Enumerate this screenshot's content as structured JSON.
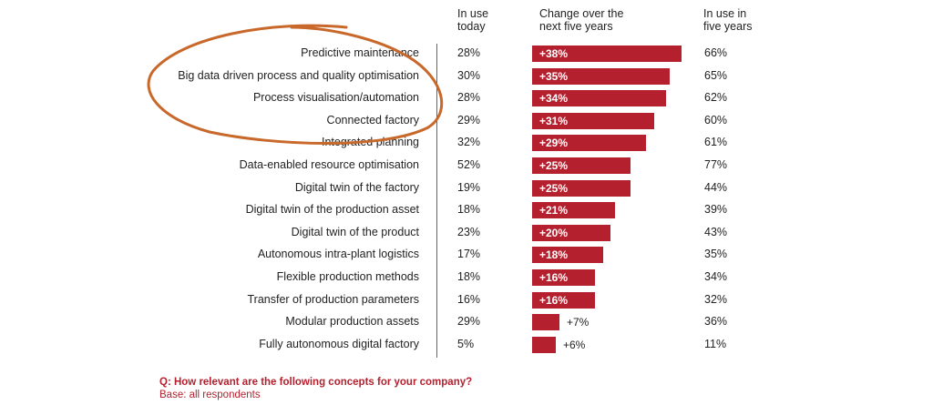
{
  "headers": {
    "today": [
      "In use",
      "today"
    ],
    "change": [
      "Change over the",
      "next five years"
    ],
    "future": [
      "In use in",
      "five years"
    ]
  },
  "chart_data": {
    "type": "bar",
    "orientation": "horizontal",
    "categories": [
      "Predictive maintenance",
      "Big data driven process and quality optimisation",
      "Process visualisation/automation",
      "Connected factory",
      "Integrated planning",
      "Data-enabled resource optimisation",
      "Digital twin of the factory",
      "Digital twin of the production asset",
      "Digital twin of the product",
      "Autonomous intra-plant logistics",
      "Flexible production methods",
      "Transfer of production parameters",
      "Modular production assets",
      "Fully autonomous digital factory"
    ],
    "in_use_today": [
      "28%",
      "30%",
      "28%",
      "29%",
      "32%",
      "52%",
      "19%",
      "18%",
      "23%",
      "17%",
      "18%",
      "16%",
      "29%",
      "5%"
    ],
    "change_labels": [
      "+38%",
      "+35%",
      "+34%",
      "+31%",
      "+29%",
      "+25%",
      "+25%",
      "+21%",
      "+20%",
      "+18%",
      "+16%",
      "+16%",
      "+7%",
      "+6%"
    ],
    "values": [
      38,
      35,
      34,
      31,
      29,
      25,
      25,
      21,
      20,
      18,
      16,
      16,
      7,
      6
    ],
    "in_use_five_years": [
      "66%",
      "65%",
      "62%",
      "60%",
      "61%",
      "77%",
      "44%",
      "39%",
      "43%",
      "35%",
      "34%",
      "32%",
      "36%",
      "11%"
    ],
    "xlim": [
      0,
      38
    ],
    "bar_color": "#b5202e",
    "highlight_color": "#c8682a"
  },
  "footer": {
    "question": "Q: How relevant are the following concepts for your company?",
    "base": "Base: all respondents"
  }
}
